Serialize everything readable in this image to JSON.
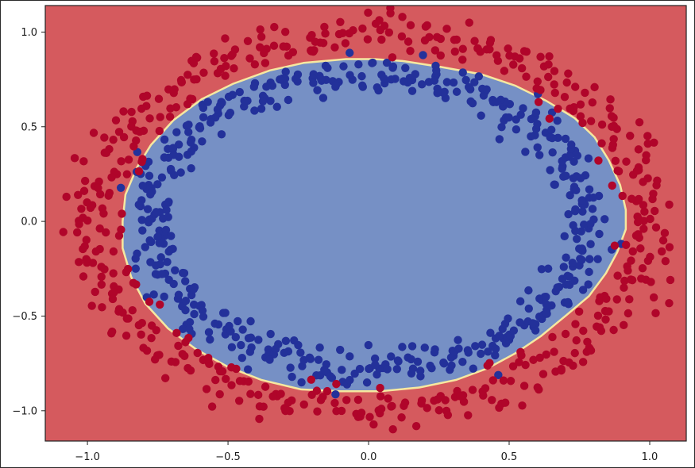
{
  "chart_data": {
    "type": "scatter",
    "title": "",
    "xlabel": "",
    "ylabel": "",
    "xlim": [
      -1.15,
      1.13
    ],
    "ylim": [
      -1.16,
      1.14
    ],
    "grid": false,
    "legend": "none",
    "x_ticks": [
      {
        "value": -1.0,
        "label": "−1.0"
      },
      {
        "value": -0.5,
        "label": "−0.5"
      },
      {
        "value": 0.0,
        "label": "0.0"
      },
      {
        "value": 0.5,
        "label": "0.5"
      },
      {
        "value": 1.0,
        "label": "1.0"
      }
    ],
    "y_ticks": [
      {
        "value": 1.0,
        "label": "1.0"
      },
      {
        "value": 0.5,
        "label": "0.5"
      },
      {
        "value": 0.0,
        "label": "0.0"
      },
      {
        "value": -0.5,
        "label": "−0.5"
      },
      {
        "value": -1.0,
        "label": "−1.0"
      }
    ],
    "decision_regions": {
      "outer_color": "#d55a5e",
      "inner_color": "#7690c5",
      "boundary_color": "#f6e8a0",
      "inner_region_outline": [
        [
          0.02,
          0.85
        ],
        [
          0.12,
          0.84
        ],
        [
          0.25,
          0.81
        ],
        [
          0.4,
          0.77
        ],
        [
          0.52,
          0.71
        ],
        [
          0.63,
          0.63
        ],
        [
          0.73,
          0.54
        ],
        [
          0.8,
          0.44
        ],
        [
          0.85,
          0.32
        ],
        [
          0.89,
          0.19
        ],
        [
          0.91,
          0.06
        ],
        [
          0.91,
          -0.04
        ],
        [
          0.88,
          -0.16
        ],
        [
          0.84,
          -0.27
        ],
        [
          0.78,
          -0.39
        ],
        [
          0.7,
          -0.49
        ],
        [
          0.61,
          -0.6
        ],
        [
          0.52,
          -0.69
        ],
        [
          0.42,
          -0.77
        ],
        [
          0.31,
          -0.83
        ],
        [
          0.18,
          -0.87
        ],
        [
          0.04,
          -0.89
        ],
        [
          -0.1,
          -0.89
        ],
        [
          -0.24,
          -0.88
        ],
        [
          -0.38,
          -0.83
        ],
        [
          -0.5,
          -0.76
        ],
        [
          -0.61,
          -0.67
        ],
        [
          -0.71,
          -0.56
        ],
        [
          -0.79,
          -0.43
        ],
        [
          -0.84,
          -0.29
        ],
        [
          -0.87,
          -0.14
        ],
        [
          -0.87,
          0.0
        ],
        [
          -0.86,
          0.14
        ],
        [
          -0.82,
          0.28
        ],
        [
          -0.77,
          0.4
        ],
        [
          -0.69,
          0.53
        ],
        [
          -0.59,
          0.64
        ],
        [
          -0.48,
          0.72
        ],
        [
          -0.35,
          0.79
        ],
        [
          -0.23,
          0.83
        ],
        [
          -0.08,
          0.85
        ]
      ]
    },
    "series": [
      {
        "class": 1,
        "color": "#23319a",
        "description_shape": "inner ring of points",
        "center": [
          0.0,
          0.0
        ],
        "radius_x": 0.78,
        "radius_y": 0.78,
        "noise": 0.045,
        "count": 500
      },
      {
        "class": 0,
        "color": "#b0052a",
        "description_shape": "outer ring of points",
        "center": [
          0.0,
          0.0
        ],
        "radius_x": 0.99,
        "radius_y": 0.99,
        "noise": 0.055,
        "count": 500
      }
    ]
  }
}
